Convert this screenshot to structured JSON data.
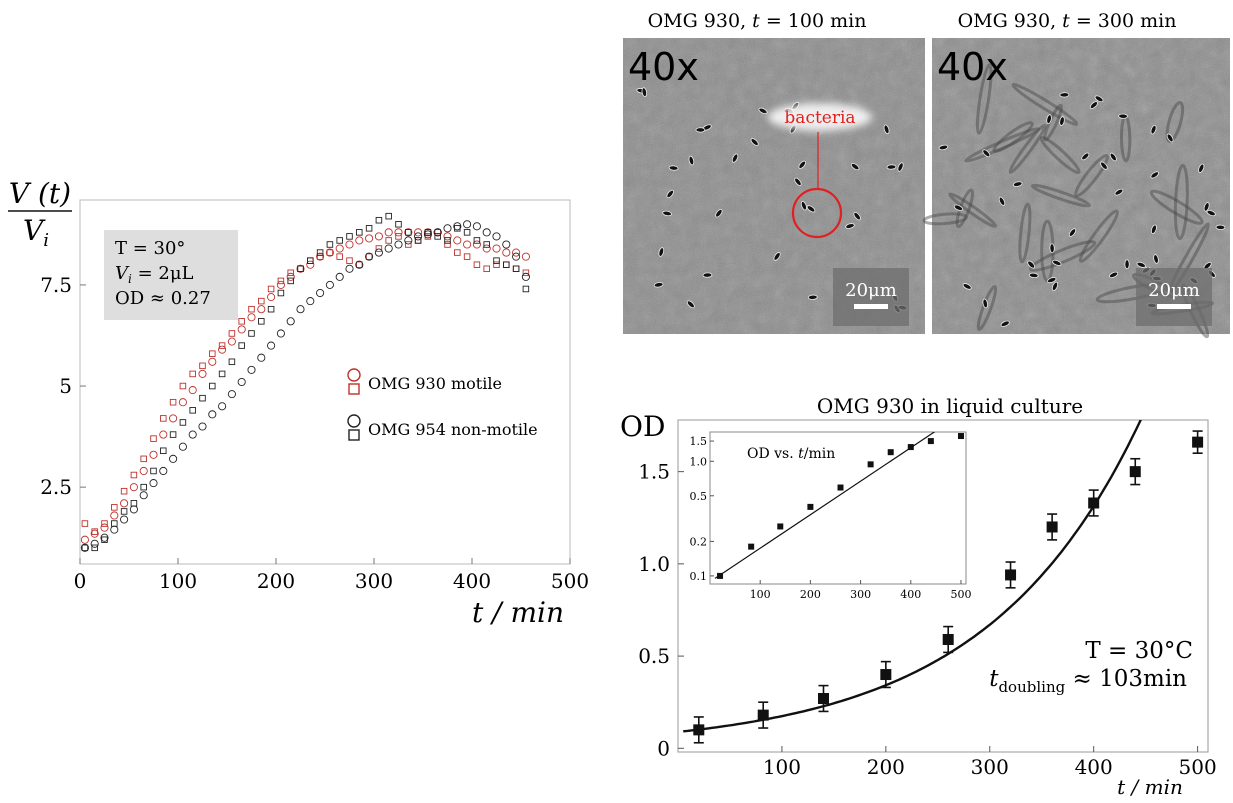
{
  "chart_data": [
    {
      "type": "scatter",
      "panel": "left",
      "title": "",
      "ylabel_num": "V (t)",
      "ylabel_den": "V",
      "ylabel_den_sub": "i",
      "xlabel": "t / min",
      "xlim": [
        0,
        500
      ],
      "ylim": [
        0.6,
        9.6
      ],
      "xticks": [
        0,
        100,
        200,
        300,
        400,
        500
      ],
      "yticks": [
        2.5,
        5,
        7.5
      ],
      "info_box": {
        "line1": "T = 30°",
        "line2_var": "V",
        "line2_sub": "i",
        "line2_rest": " = 2μL",
        "line3": "OD ≈ 0.27"
      },
      "legend": {
        "placement": "center-right",
        "entries": [
          {
            "label": "OMG 930 motile",
            "color": "#c0302b"
          },
          {
            "label": "OMG 954 non-motile",
            "color": "#222222"
          }
        ]
      },
      "series": [
        {
          "name": "OMG 930 motile",
          "marker": "circle",
          "color": "#c0302b",
          "x": [
            5,
            15,
            25,
            35,
            45,
            55,
            65,
            75,
            85,
            95,
            105,
            115,
            125,
            135,
            145,
            155,
            165,
            175,
            185,
            195,
            205,
            215,
            225,
            235,
            245,
            255,
            265,
            275,
            285,
            295,
            305,
            315,
            325,
            335,
            345,
            355,
            365,
            375,
            385,
            395,
            405,
            415,
            425,
            435,
            445,
            455
          ],
          "y": [
            1.2,
            1.35,
            1.5,
            1.8,
            2.1,
            2.5,
            2.9,
            3.3,
            3.8,
            4.2,
            4.6,
            4.9,
            5.3,
            5.6,
            5.9,
            6.1,
            6.4,
            6.7,
            6.9,
            7.2,
            7.5,
            7.7,
            7.9,
            8.0,
            8.2,
            8.3,
            8.4,
            8.5,
            8.6,
            8.65,
            8.7,
            8.8,
            8.8,
            8.8,
            8.8,
            8.8,
            8.8,
            8.7,
            8.6,
            8.5,
            8.5,
            8.4,
            8.4,
            8.3,
            8.3,
            8.2
          ]
        },
        {
          "name": "OMG 930 motile",
          "marker": "square",
          "color": "#c0302b",
          "x": [
            5,
            15,
            25,
            35,
            45,
            55,
            65,
            75,
            85,
            95,
            105,
            115,
            125,
            135,
            145,
            155,
            165,
            175,
            185,
            195,
            205,
            215,
            225,
            235,
            245,
            255,
            265,
            275,
            285,
            295,
            305,
            315,
            325,
            335,
            345,
            355,
            365,
            375,
            385,
            395,
            405,
            415,
            425,
            435,
            445,
            455
          ],
          "y": [
            1.6,
            1.4,
            1.6,
            2.0,
            2.4,
            2.8,
            3.2,
            3.7,
            4.2,
            4.6,
            5.0,
            5.3,
            5.5,
            5.8,
            6.0,
            6.3,
            6.6,
            6.9,
            7.1,
            7.4,
            7.6,
            7.8,
            7.9,
            8.1,
            8.2,
            8.3,
            8.2,
            8.1,
            8.0,
            8.2,
            8.4,
            8.6,
            8.7,
            8.5,
            8.6,
            8.7,
            8.8,
            8.5,
            8.3,
            8.2,
            8.0,
            7.9,
            8.0,
            8.0,
            7.9,
            7.8
          ]
        },
        {
          "name": "OMG 954 non-motile",
          "marker": "circle",
          "color": "#222222",
          "x": [
            5,
            15,
            25,
            35,
            45,
            55,
            65,
            75,
            85,
            95,
            105,
            115,
            125,
            135,
            145,
            155,
            165,
            175,
            185,
            195,
            205,
            215,
            225,
            235,
            245,
            255,
            265,
            275,
            285,
            295,
            305,
            315,
            325,
            335,
            345,
            355,
            365,
            375,
            385,
            395,
            405,
            415,
            425,
            435,
            445,
            455
          ],
          "y": [
            1.0,
            1.1,
            1.25,
            1.45,
            1.7,
            1.95,
            2.3,
            2.6,
            2.9,
            3.2,
            3.5,
            3.8,
            4.0,
            4.3,
            4.5,
            4.8,
            5.1,
            5.4,
            5.7,
            6.0,
            6.3,
            6.6,
            6.9,
            7.1,
            7.3,
            7.5,
            7.7,
            7.9,
            8.0,
            8.2,
            8.3,
            8.4,
            8.5,
            8.6,
            8.7,
            8.75,
            8.8,
            8.9,
            8.95,
            9.0,
            8.95,
            8.8,
            8.7,
            8.5,
            8.2,
            7.7
          ]
        },
        {
          "name": "OMG 954 non-motile",
          "marker": "square",
          "color": "#222222",
          "x": [
            5,
            15,
            25,
            35,
            45,
            55,
            65,
            75,
            85,
            95,
            105,
            115,
            125,
            135,
            145,
            155,
            165,
            175,
            185,
            195,
            205,
            215,
            225,
            235,
            245,
            255,
            265,
            275,
            285,
            295,
            305,
            315,
            325,
            335,
            345,
            355,
            365,
            375,
            385,
            395,
            405,
            415,
            425,
            435,
            445,
            455
          ],
          "y": [
            1.0,
            1.0,
            1.2,
            1.6,
            1.9,
            2.1,
            2.5,
            2.9,
            3.4,
            3.8,
            4.1,
            4.4,
            4.7,
            5.0,
            5.3,
            5.6,
            6.0,
            6.3,
            6.6,
            6.9,
            7.3,
            7.6,
            7.9,
            8.1,
            8.3,
            8.5,
            8.6,
            8.7,
            8.8,
            8.9,
            9.1,
            9.2,
            9.0,
            8.8,
            8.6,
            8.8,
            8.7,
            8.6,
            8.9,
            8.8,
            8.6,
            8.5,
            8.1,
            8.0,
            7.9,
            7.4
          ]
        }
      ]
    },
    {
      "type": "scatter",
      "panel": "bottom-right",
      "title": "OMG 930 in liquid culture",
      "ylabel": "OD",
      "xlabel": "t / min",
      "xlim": [
        0,
        510
      ],
      "ylim": [
        -0.02,
        1.78
      ],
      "xticks": [
        100,
        200,
        300,
        400,
        500
      ],
      "yticks": [
        0,
        0.5,
        1.0,
        1.5
      ],
      "ytick_labels": [
        "0",
        "0.5",
        "1.0",
        "1.5"
      ],
      "annotation_line1": "T = 30°C",
      "annotation_var": "t",
      "annotation_sub": "doubling",
      "annotation_rest": " ≈ 103min",
      "fit": {
        "a": 0.089,
        "doubling_time": 103
      },
      "points": {
        "x": [
          20,
          82,
          140,
          200,
          260,
          320,
          360,
          400,
          440,
          500
        ],
        "y": [
          0.1,
          0.18,
          0.27,
          0.4,
          0.59,
          0.94,
          1.2,
          1.33,
          1.5,
          1.66
        ],
        "err": [
          0.07,
          0.07,
          0.07,
          0.07,
          0.07,
          0.07,
          0.07,
          0.07,
          0.07,
          0.06
        ]
      },
      "inset": {
        "title_pre": "OD vs. ",
        "title_var": "t",
        "title_post": "/min",
        "yscale": "log",
        "xlim": [
          0,
          510
        ],
        "ylim": [
          0.085,
          1.8
        ],
        "xticks": [
          100,
          200,
          300,
          400,
          500
        ],
        "yticks": [
          0.1,
          0.2,
          0.5,
          1.0,
          1.5
        ],
        "ytick_labels": [
          "0.1",
          "0.2",
          "0.5",
          "1.0",
          "1.5"
        ]
      }
    }
  ],
  "micrographs": [
    {
      "title_pre": "OMG 930, ",
      "title_var": "t",
      "title_post": " = 100 min",
      "mag": "40x",
      "scale_label": "20μm",
      "annotation": "bacteria",
      "annotation_color": "#e02020"
    },
    {
      "title_pre": "OMG 930, ",
      "title_var": "t",
      "title_post": " = 300 min",
      "mag": "40x",
      "scale_label": "20μm"
    }
  ]
}
